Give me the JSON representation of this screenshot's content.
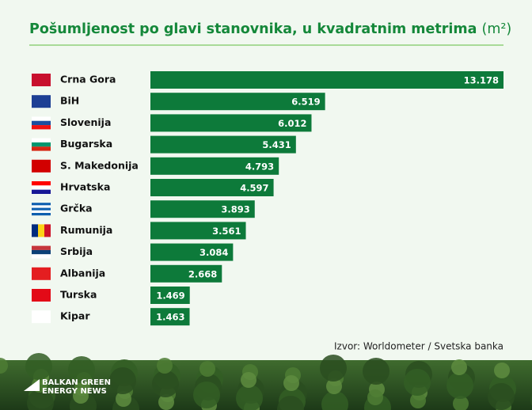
{
  "chart_data": {
    "type": "bar",
    "orientation": "horizontal",
    "title": "Pošumljenost po glavi stanovnika, u kvadratnim metrima",
    "unit": "(m²)",
    "categories": [
      "Crna Gora",
      "BiH",
      "Slovenija",
      "Bugarska",
      "S. Makedonija",
      "Hrvatska",
      "Grčka",
      "Rumunija",
      "Srbija",
      "Albanija",
      "Turska",
      "Kipar"
    ],
    "values": [
      13178,
      6519,
      6012,
      5431,
      4793,
      4597,
      3893,
      3561,
      3084,
      2668,
      1469,
      1463
    ],
    "value_labels": [
      "13.178",
      "6.519",
      "6.012",
      "5.431",
      "4.793",
      "4.597",
      "3.893",
      "3.561",
      "3.084",
      "2.668",
      "1.469",
      "1.463"
    ],
    "color": "#0d7a3a",
    "source": "Izvor: Worldometer / Svetska banka",
    "logo": [
      "BALKAN GREEN",
      "ENERGY NEWS"
    ]
  }
}
